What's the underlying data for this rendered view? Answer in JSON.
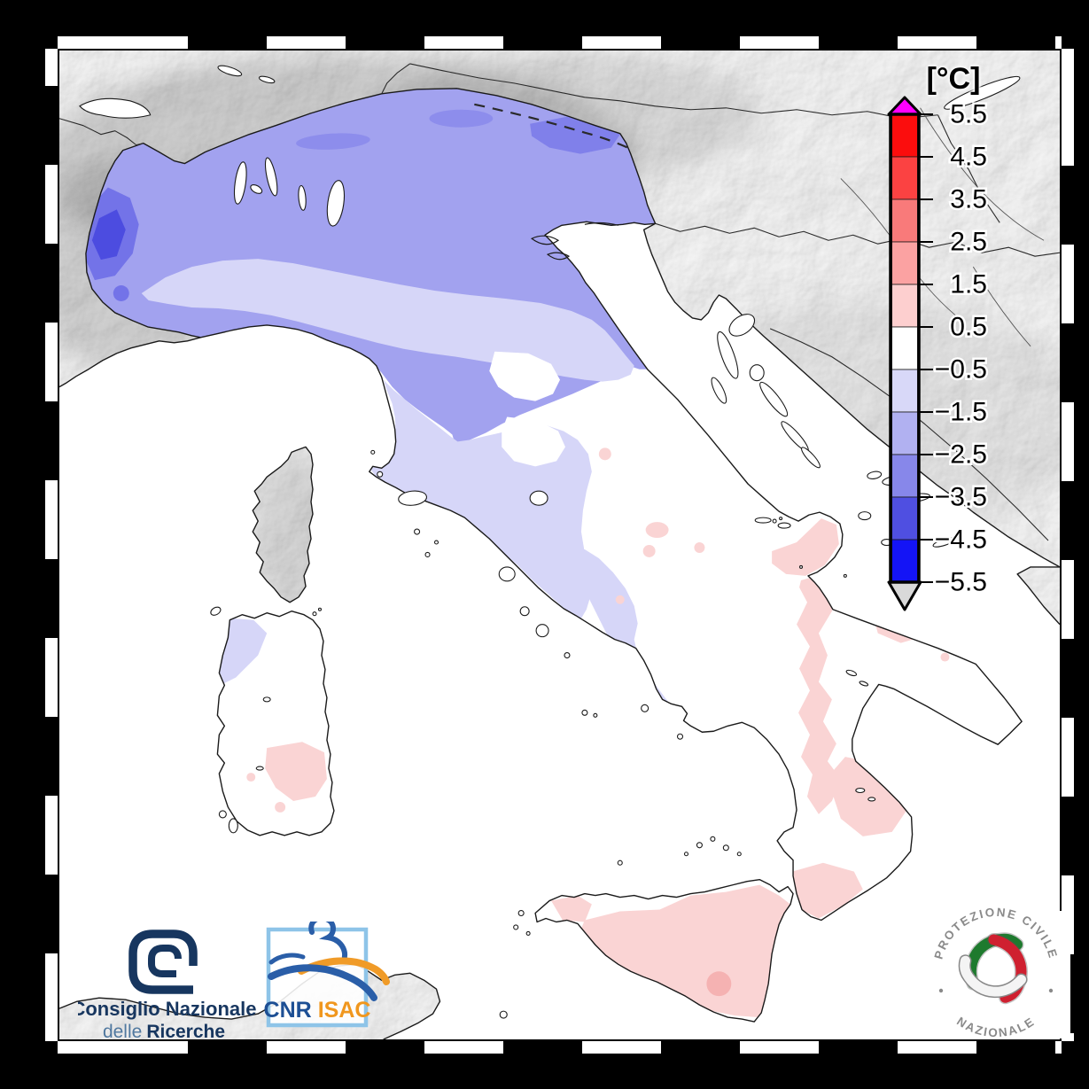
{
  "figure": {
    "background_color": "#000000",
    "frame_tick_color": "#ffffff",
    "sea_color": "#ffffff"
  },
  "colorbar": {
    "title": "[°C]",
    "unit": "°C",
    "range_min": -5.5,
    "range_max": 5.5,
    "tick_labels": [
      "5.5",
      "4.5",
      "3.5",
      "2.5",
      "1.5",
      "0.5",
      "−0.5",
      "−1.5",
      "−2.5",
      "−3.5",
      "−4.5",
      "−5.5"
    ],
    "segment_colors": [
      "#fb0d0d",
      "#fb4242",
      "#f97a7a",
      "#fba2a2",
      "#fdcfcf",
      "#ffffff",
      "#d8d8f8",
      "#b1b1f1",
      "#8787ea",
      "#4f4fe1",
      "#1414f6"
    ],
    "above_max_color": "#ff00ff",
    "below_min_color": "#d9d9d9",
    "outline_color": "#000000"
  },
  "map": {
    "type": "temperature-anomaly-map",
    "anomaly_palette": {
      "strong_negative": "#7373e8",
      "negative": "#a2a2ef",
      "weak_negative": "#d6d6f8",
      "neutral": "#ffffff",
      "weak_positive": "#fad4d4",
      "positive": "#f5b2b2"
    },
    "regions_reading": [
      {
        "region": "Western Alps / Aosta",
        "anomaly": "−3.5 to −2.5 °C"
      },
      {
        "region": "Northern Italy / Po Valley",
        "anomaly": "−2.5 to −0.5 °C"
      },
      {
        "region": "Central Italy (Tuscany, Umbria, Lazio)",
        "anomaly": "−1.5 to +0.5 °C"
      },
      {
        "region": "Southern Apennines / Puglia / Calabria",
        "anomaly": "+0.5 to +1.5 °C in patches"
      },
      {
        "region": "Sicily",
        "anomaly": "+0.5 to +1.5 °C"
      },
      {
        "region": "Sardinia",
        "anomaly": "−1.5 °C north-west, +0.5 to +1.5 °C south"
      }
    ]
  },
  "logos": {
    "cnr": {
      "line1": "Consiglio Nazionale",
      "line2_light": "delle",
      "line2_bold": "Ricerche",
      "color": "#17365f"
    },
    "cnr_isac": {
      "text_cnr": "CNR",
      "text_isac": "ISAC",
      "blue": "#1d4f94",
      "orange": "#f0971e"
    },
    "protezione_civile": {
      "arc_top": "PROTEZIONE CIVILE",
      "arc_bottom": "NAZIONALE",
      "text_color": "#8a8a8a"
    }
  }
}
